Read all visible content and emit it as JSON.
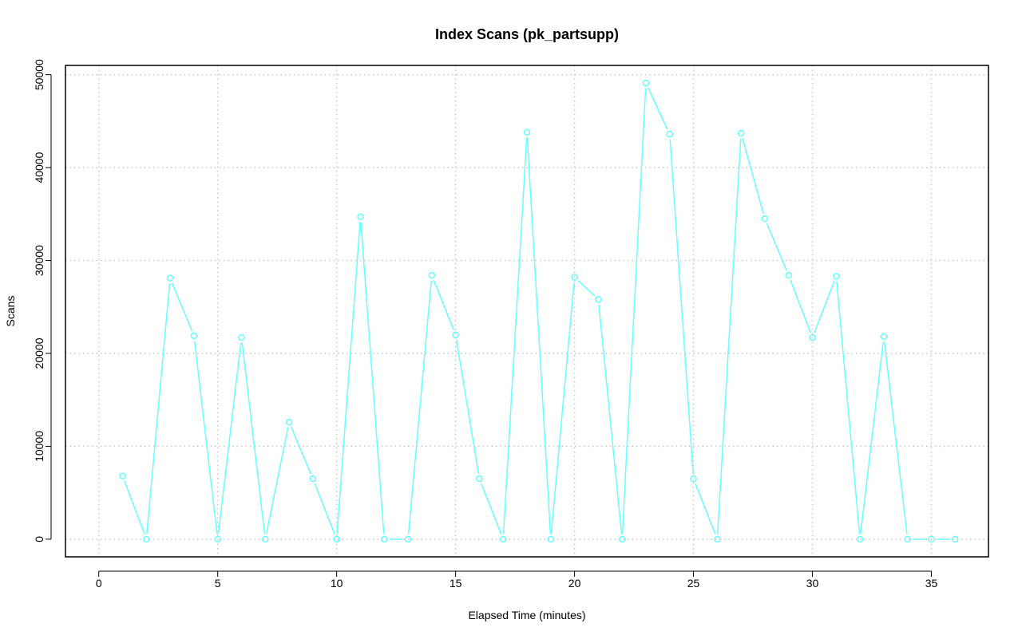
{
  "chart_data": {
    "type": "line",
    "title": "Index Scans (pk_partsupp)",
    "xlabel": "Elapsed Time (minutes)",
    "ylabel": "Scans",
    "xlim": [
      -1.4,
      37.4
    ],
    "ylim": [
      -1900,
      51000
    ],
    "x_ticks": [
      0,
      5,
      10,
      15,
      20,
      25,
      30,
      35
    ],
    "y_ticks": [
      0,
      10000,
      20000,
      30000,
      40000,
      50000
    ],
    "grid": true,
    "series": [
      {
        "color": "#66ffff",
        "marker": "open-circle",
        "x": [
          1,
          2,
          3,
          4,
          5,
          6,
          7,
          8,
          9,
          10,
          11,
          12,
          13,
          14,
          15,
          16,
          17,
          18,
          19,
          20,
          21,
          22,
          23,
          24,
          25,
          26,
          27,
          28,
          29,
          30,
          31,
          32,
          33,
          34,
          35,
          36
        ],
        "values": [
          6800,
          0,
          28100,
          21900,
          0,
          21700,
          0,
          12600,
          6500,
          0,
          34700,
          0,
          0,
          28400,
          22000,
          6500,
          0,
          43800,
          0,
          28200,
          25800,
          0,
          49100,
          43600,
          6500,
          0,
          43700,
          34500,
          28400,
          21700,
          28300,
          0,
          21800,
          0,
          0,
          0
        ]
      }
    ]
  }
}
